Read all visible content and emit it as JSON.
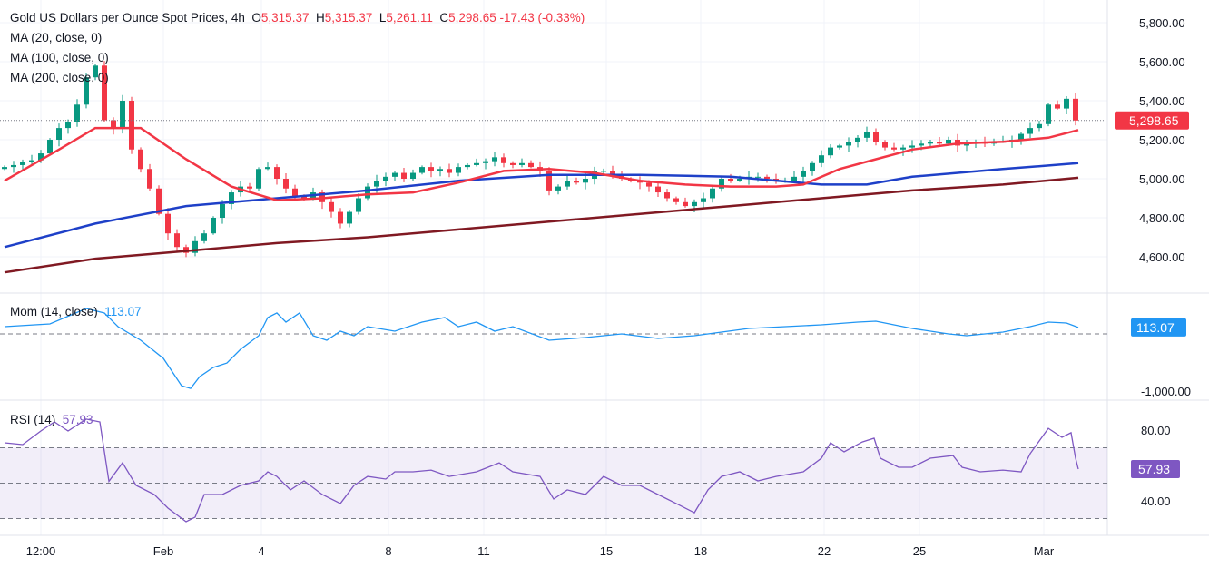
{
  "header": {
    "title": "Gold US Dollars per Ounce Spot Prices, 4h",
    "o_label": "O",
    "o": "5,315.37",
    "h_label": "H",
    "h": "5,315.37",
    "l_label": "L",
    "l": "5,261.11",
    "c_label": "C",
    "c": "5,298.65",
    "change": "-17.43 (-0.33%)"
  },
  "legend": {
    "ma20": "MA (20, close, 0)",
    "ma100": "MA (100, close, 0)",
    "ma200": "MA (200, close, 0)",
    "mom": "Mom (14, close)",
    "mom_value": "113.07",
    "rsi": "RSI (14)",
    "rsi_value": "57.93"
  },
  "colors": {
    "up": "#089981",
    "down": "#f23645",
    "ma20": "#f23645",
    "ma100": "#1e40c8",
    "ma200": "#801922",
    "mom": "#2196f3",
    "rsi": "#7e57c2"
  },
  "chart_data": {
    "type": "candlestick",
    "price_axis": {
      "ticks": [
        "5,800.00",
        "5,600.00",
        "5,400.00",
        "5,200.00",
        "5,000.00",
        "4,800.00",
        "4,600.00"
      ],
      "tick_values": [
        5800,
        5600,
        5400,
        5200,
        5000,
        4800,
        4600
      ],
      "last_label": "5,298.65",
      "last_value": 5298.65
    },
    "time_axis": {
      "ticks": [
        {
          "label": "12:00",
          "x": 4
        },
        {
          "label": "Feb",
          "x": 17.5
        },
        {
          "label": "4",
          "x": 28.3
        },
        {
          "label": "8",
          "x": 42.3
        },
        {
          "label": "11",
          "x": 52.8
        },
        {
          "label": "15",
          "x": 66.3
        },
        {
          "label": "18",
          "x": 76.7
        },
        {
          "label": "22",
          "x": 90.3
        },
        {
          "label": "25",
          "x": 100.8
        },
        {
          "label": "Mar",
          "x": 114.5
        }
      ]
    },
    "first_open": 5050,
    "closes": [
      5060,
      5070,
      5085,
      5095,
      5130,
      5200,
      5260,
      5290,
      5380,
      5520,
      5580,
      5300,
      5260,
      5400,
      5150,
      5050,
      4950,
      4820,
      4720,
      4650,
      4620,
      4680,
      4720,
      4800,
      4870,
      4930,
      4960,
      4950,
      5050,
      5060,
      5000,
      4950,
      4910,
      4900,
      4930,
      4880,
      4830,
      4770,
      4830,
      4900,
      4960,
      4990,
      5010,
      5030,
      5000,
      5030,
      5060,
      5040,
      5050,
      5030,
      5060,
      5070,
      5080,
      5090,
      5110,
      5080,
      5070,
      5080,
      5060,
      5040,
      4940,
      4960,
      4990,
      4980,
      5000,
      5040,
      5040,
      5020,
      5000,
      4990,
      4980,
      4960,
      4930,
      4900,
      4880,
      4860,
      4880,
      4900,
      4950,
      5000,
      4990,
      5000,
      5010,
      5010,
      5000,
      4990,
      4990,
      5010,
      5040,
      5080,
      5120,
      5160,
      5170,
      5190,
      5210,
      5240,
      5190,
      5160,
      5150,
      5160,
      5170,
      5180,
      5190,
      5180,
      5200,
      5170,
      5180,
      5190,
      5180,
      5190,
      5190,
      5200,
      5230,
      5260,
      5280,
      5380,
      5360,
      5410,
      5298.65
    ],
    "ma20": [
      [
        0,
        4990
      ],
      [
        6,
        5150
      ],
      [
        10,
        5260
      ],
      [
        15,
        5260
      ],
      [
        20,
        5100
      ],
      [
        25,
        4960
      ],
      [
        30,
        4890
      ],
      [
        35,
        4900
      ],
      [
        40,
        4920
      ],
      [
        45,
        4930
      ],
      [
        50,
        4980
      ],
      [
        55,
        5040
      ],
      [
        60,
        5050
      ],
      [
        65,
        5030
      ],
      [
        70,
        4990
      ],
      [
        75,
        4970
      ],
      [
        80,
        4960
      ],
      [
        85,
        4960
      ],
      [
        88,
        4970
      ],
      [
        92,
        5050
      ],
      [
        96,
        5100
      ],
      [
        100,
        5150
      ],
      [
        105,
        5180
      ],
      [
        110,
        5190
      ],
      [
        115,
        5210
      ],
      [
        118.3,
        5250
      ]
    ],
    "ma100": [
      [
        0,
        4650
      ],
      [
        10,
        4770
      ],
      [
        20,
        4860
      ],
      [
        30,
        4900
      ],
      [
        40,
        4940
      ],
      [
        50,
        4990
      ],
      [
        60,
        5020
      ],
      [
        70,
        5020
      ],
      [
        80,
        5010
      ],
      [
        90,
        4970
      ],
      [
        95,
        4970
      ],
      [
        100,
        5010
      ],
      [
        110,
        5050
      ],
      [
        118.3,
        5080
      ]
    ],
    "ma200": [
      [
        0,
        4520
      ],
      [
        10,
        4590
      ],
      [
        20,
        4630
      ],
      [
        30,
        4670
      ],
      [
        40,
        4700
      ],
      [
        50,
        4740
      ],
      [
        60,
        4780
      ],
      [
        70,
        4820
      ],
      [
        80,
        4860
      ],
      [
        90,
        4900
      ],
      [
        100,
        4940
      ],
      [
        110,
        4970
      ],
      [
        118.3,
        5005
      ]
    ],
    "momentum": {
      "axis_ticks": [
        "-1,000.00"
      ],
      "zero_line": 0,
      "last": 113.07,
      "points": [
        [
          0,
          127
        ],
        [
          5,
          175
        ],
        [
          9,
          445
        ],
        [
          11,
          365
        ],
        [
          12.5,
          127
        ],
        [
          15,
          -111
        ],
        [
          17.5,
          -429
        ],
        [
          19.5,
          -906
        ],
        [
          20.5,
          -954
        ],
        [
          21.5,
          -747
        ],
        [
          23,
          -588
        ],
        [
          24.5,
          -509
        ],
        [
          26,
          -270
        ],
        [
          28,
          -32
        ],
        [
          29,
          286
        ],
        [
          30,
          366
        ],
        [
          31,
          207
        ],
        [
          32.5,
          366
        ],
        [
          34,
          -32
        ],
        [
          35.5,
          -111
        ],
        [
          37,
          48
        ],
        [
          38.5,
          -32
        ],
        [
          40,
          127
        ],
        [
          43,
          48
        ],
        [
          46,
          207
        ],
        [
          48.5,
          286
        ],
        [
          50,
          127
        ],
        [
          52,
          207
        ],
        [
          54,
          48
        ],
        [
          56,
          127
        ],
        [
          60,
          -111
        ],
        [
          64,
          -64
        ],
        [
          68,
          0
        ],
        [
          72,
          -80
        ],
        [
          76,
          -32
        ],
        [
          79,
          32
        ],
        [
          82,
          95
        ],
        [
          86,
          127
        ],
        [
          90,
          159
        ],
        [
          94,
          207
        ],
        [
          96,
          223
        ],
        [
          100,
          95
        ],
        [
          104,
          0
        ],
        [
          106,
          -32
        ],
        [
          110,
          32
        ],
        [
          113,
          127
        ],
        [
          115,
          207
        ],
        [
          117,
          191
        ],
        [
          118.3,
          113.07
        ]
      ]
    },
    "rsi": {
      "axis_ticks": [
        "80.00",
        "40.00"
      ],
      "band": [
        30,
        70
      ],
      "mid": 50,
      "last": 57.93,
      "points": [
        [
          0,
          72.8
        ],
        [
          2,
          71.8
        ],
        [
          4,
          79.5
        ],
        [
          5.5,
          84.6
        ],
        [
          7,
          79.5
        ],
        [
          9,
          86.2
        ],
        [
          10.5,
          84.6
        ],
        [
          11.5,
          51
        ],
        [
          13,
          61.5
        ],
        [
          14.5,
          48.7
        ],
        [
          16.5,
          43.6
        ],
        [
          18,
          35.9
        ],
        [
          20,
          28.2
        ],
        [
          21,
          30.8
        ],
        [
          22,
          43.6
        ],
        [
          24,
          43.6
        ],
        [
          26,
          48.7
        ],
        [
          28,
          51.3
        ],
        [
          29,
          56.4
        ],
        [
          30,
          53.8
        ],
        [
          31.5,
          46.2
        ],
        [
          33,
          51.3
        ],
        [
          35,
          43.6
        ],
        [
          37,
          38.5
        ],
        [
          38.5,
          48.7
        ],
        [
          40,
          53.8
        ],
        [
          42,
          52.3
        ],
        [
          43,
          56.4
        ],
        [
          45,
          56.4
        ],
        [
          47,
          57.4
        ],
        [
          49,
          53.8
        ],
        [
          52,
          56.4
        ],
        [
          54.5,
          61.5
        ],
        [
          56,
          56.4
        ],
        [
          59,
          53.8
        ],
        [
          60.5,
          41
        ],
        [
          62,
          46.2
        ],
        [
          64,
          43.6
        ],
        [
          66,
          53.8
        ],
        [
          68,
          48.7
        ],
        [
          70,
          48.7
        ],
        [
          72,
          43.6
        ],
        [
          74,
          38.5
        ],
        [
          76,
          33.3
        ],
        [
          77.5,
          46.2
        ],
        [
          79,
          53.8
        ],
        [
          81,
          56.4
        ],
        [
          83,
          51.3
        ],
        [
          85,
          53.8
        ],
        [
          88,
          56.4
        ],
        [
          90,
          64.1
        ],
        [
          91,
          72.8
        ],
        [
          92.5,
          67.7
        ],
        [
          94.5,
          73.3
        ],
        [
          95.8,
          75.4
        ],
        [
          96.5,
          64.1
        ],
        [
          98.5,
          59
        ],
        [
          100,
          59
        ],
        [
          102,
          64.1
        ],
        [
          104.5,
          65.6
        ],
        [
          105.5,
          59
        ],
        [
          107.5,
          56.4
        ],
        [
          110,
          57.4
        ],
        [
          112,
          56.4
        ],
        [
          113,
          66.7
        ],
        [
          115,
          81
        ],
        [
          116.5,
          75.9
        ],
        [
          117.5,
          78.5
        ],
        [
          118,
          64.1
        ],
        [
          118.3,
          57.93
        ]
      ]
    }
  }
}
